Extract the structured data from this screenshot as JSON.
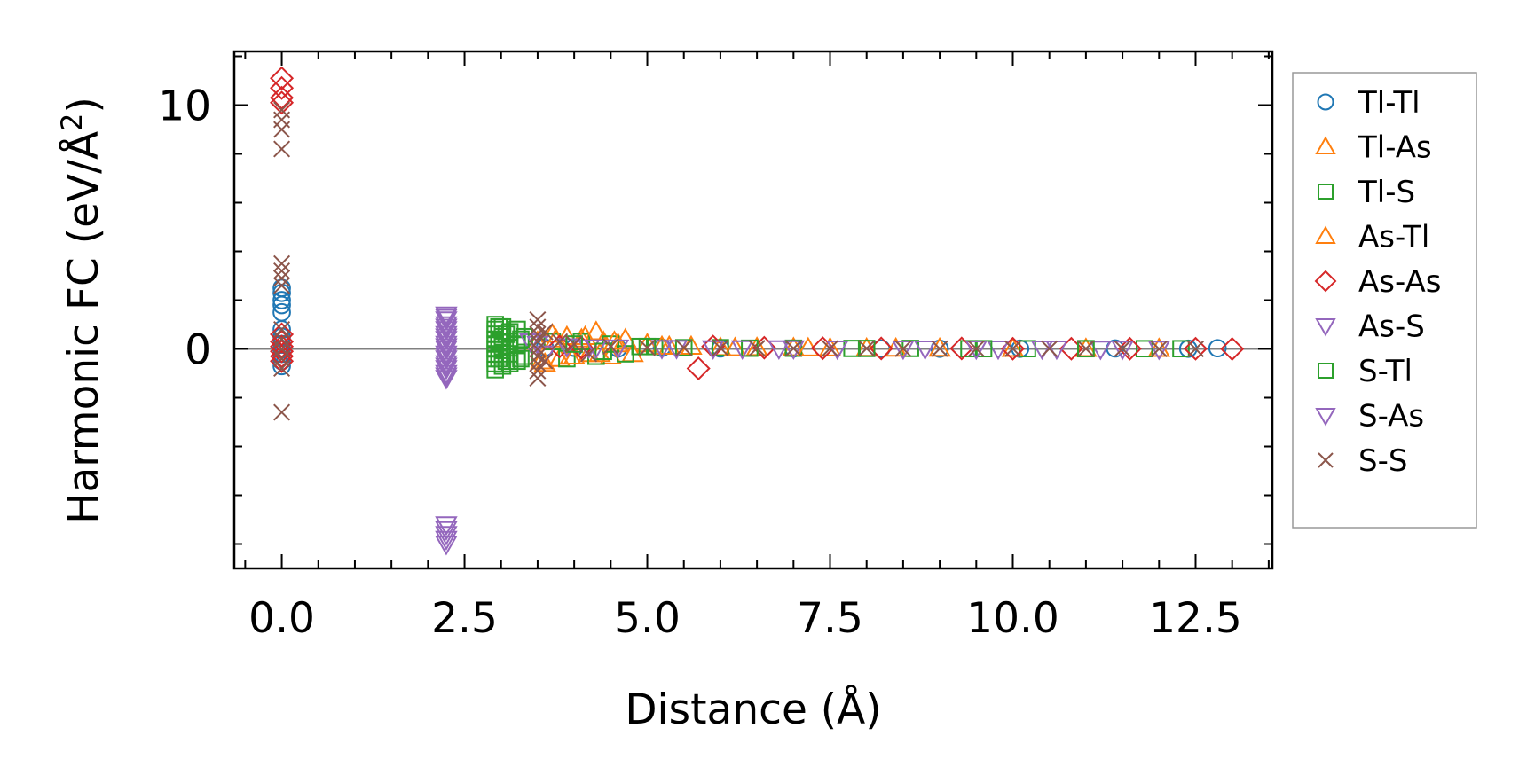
{
  "chart_data": {
    "type": "scatter",
    "title": "",
    "xlabel": "Distance (Å)",
    "ylabel_main": "Harmonic FC (eV/Å",
    "ylabel_sup": "2",
    "ylabel_close": ")",
    "xlim": [
      -0.65,
      13.55
    ],
    "ylim": [
      -9.0,
      12.2
    ],
    "xticks": [
      0.0,
      2.5,
      5.0,
      7.5,
      10.0,
      12.5
    ],
    "xtick_labels": [
      "0.0",
      "2.5",
      "5.0",
      "7.5",
      "10.0",
      "12.5"
    ],
    "yticks": [
      0,
      10
    ],
    "ytick_labels": [
      "0",
      "10"
    ],
    "y_minor_step": 2,
    "x_minor_step": 0.5,
    "zero_line": true,
    "legend_position": "outside-right",
    "series": [
      {
        "name": "Tl-Tl",
        "marker": "circle",
        "color": "#1f77b4",
        "points": [
          [
            0,
            2.3
          ],
          [
            0,
            2.0
          ],
          [
            0,
            1.8
          ],
          [
            0,
            2.5
          ],
          [
            0,
            0.8
          ],
          [
            0,
            0.5
          ],
          [
            0,
            0.2
          ],
          [
            0,
            -0.2
          ],
          [
            0,
            -0.5
          ],
          [
            0,
            -0.7
          ],
          [
            0,
            0.0
          ],
          [
            0,
            1.5
          ],
          [
            3.6,
            0.05
          ],
          [
            4.0,
            0.05
          ],
          [
            4.6,
            0.02
          ],
          [
            5.2,
            0.05
          ],
          [
            6.0,
            0.02
          ],
          [
            7.0,
            0.02
          ],
          [
            8.2,
            0.01
          ],
          [
            9.0,
            0.01
          ],
          [
            10.1,
            0.01
          ],
          [
            11.4,
            0.02
          ],
          [
            12.4,
            0.01
          ],
          [
            12.8,
            0.03
          ]
        ]
      },
      {
        "name": "Tl-As",
        "marker": "triangle-up",
        "color": "#ff7f0e",
        "points": [
          [
            3.5,
            0.3
          ],
          [
            3.6,
            -0.6
          ],
          [
            3.7,
            0.6
          ],
          [
            3.8,
            -0.4
          ],
          [
            3.9,
            0.5
          ],
          [
            4.0,
            -0.3
          ],
          [
            4.1,
            0.4
          ],
          [
            4.2,
            -0.2
          ],
          [
            4.3,
            0.7
          ],
          [
            4.4,
            0.3
          ],
          [
            4.5,
            -0.3
          ],
          [
            4.6,
            0.2
          ],
          [
            4.7,
            0.4
          ],
          [
            4.8,
            -0.2
          ],
          [
            5.0,
            0.2
          ],
          [
            5.3,
            0.1
          ],
          [
            5.6,
            0.1
          ],
          [
            6.0,
            0.05
          ],
          [
            6.5,
            0.05
          ],
          [
            7.0,
            0.04
          ],
          [
            7.5,
            0.03
          ],
          [
            8.0,
            0.02
          ],
          [
            9.0,
            0.02
          ],
          [
            10.0,
            0.01
          ],
          [
            11.0,
            0.01
          ],
          [
            12.0,
            0.01
          ]
        ]
      },
      {
        "name": "Tl-S",
        "marker": "square",
        "color": "#2ca02c",
        "points": [
          [
            2.92,
            1.0
          ],
          [
            2.92,
            0.8
          ],
          [
            2.92,
            0.6
          ],
          [
            2.92,
            0.4
          ],
          [
            2.92,
            0.2
          ],
          [
            2.92,
            0.0
          ],
          [
            2.92,
            -0.2
          ],
          [
            2.92,
            -0.4
          ],
          [
            2.92,
            -0.6
          ],
          [
            2.92,
            -0.85
          ],
          [
            3.02,
            0.9
          ],
          [
            3.02,
            0.5
          ],
          [
            3.02,
            0.1
          ],
          [
            3.02,
            -0.3
          ],
          [
            3.02,
            -0.7
          ],
          [
            3.12,
            0.7
          ],
          [
            3.12,
            0.3
          ],
          [
            3.12,
            -0.2
          ],
          [
            3.12,
            -0.6
          ],
          [
            3.22,
            0.8
          ],
          [
            3.22,
            0.2
          ],
          [
            3.22,
            -0.5
          ],
          [
            3.32,
            0.5
          ],
          [
            3.32,
            -0.3
          ],
          [
            3.7,
            0.3
          ],
          [
            3.9,
            -0.4
          ],
          [
            4.1,
            0.3
          ],
          [
            4.3,
            -0.3
          ],
          [
            4.5,
            0.2
          ],
          [
            4.7,
            -0.2
          ],
          [
            4.9,
            0.1
          ],
          [
            5.1,
            0.1
          ],
          [
            5.5,
            0.05
          ],
          [
            6.0,
            0.05
          ],
          [
            7.0,
            0.03
          ],
          [
            7.8,
            0.02
          ],
          [
            8.6,
            0.02
          ],
          [
            9.4,
            0.01
          ],
          [
            10.2,
            0.01
          ],
          [
            11.0,
            0.01
          ],
          [
            11.8,
            0.01
          ],
          [
            12.3,
            0.01
          ]
        ]
      },
      {
        "name": "As-Tl",
        "marker": "triangle-up",
        "color": "#ff7f0e",
        "points": [
          [
            3.55,
            -0.5
          ],
          [
            3.75,
            0.4
          ],
          [
            3.95,
            -0.3
          ],
          [
            4.15,
            0.5
          ],
          [
            4.35,
            -0.2
          ],
          [
            4.55,
            0.3
          ],
          [
            5.2,
            0.1
          ],
          [
            6.2,
            0.04
          ],
          [
            7.2,
            0.03
          ],
          [
            8.4,
            0.02
          ]
        ]
      },
      {
        "name": "As-As",
        "marker": "diamond",
        "color": "#d62728",
        "points": [
          [
            0,
            11.1
          ],
          [
            0,
            10.7
          ],
          [
            0,
            10.3
          ],
          [
            0,
            10.1
          ],
          [
            0,
            0.6
          ],
          [
            0,
            0.3
          ],
          [
            0,
            0.1
          ],
          [
            0,
            -0.1
          ],
          [
            0,
            -0.3
          ],
          [
            0,
            -0.5
          ],
          [
            3.8,
            0.1
          ],
          [
            4.1,
            0.05
          ],
          [
            5.7,
            -0.8
          ],
          [
            5.9,
            0.1
          ],
          [
            6.6,
            0.05
          ],
          [
            7.4,
            0.03
          ],
          [
            8.2,
            0.02
          ],
          [
            9.3,
            0.02
          ],
          [
            10.0,
            0.01
          ],
          [
            10.8,
            0.01
          ],
          [
            11.6,
            0.01
          ],
          [
            12.5,
            0.01
          ],
          [
            13.0,
            0.0
          ]
        ]
      },
      {
        "name": "As-S",
        "marker": "triangle-down",
        "color": "#9467bd",
        "points": [
          [
            2.25,
            1.4
          ],
          [
            2.25,
            1.2
          ],
          [
            2.25,
            1.0
          ],
          [
            2.25,
            0.8
          ],
          [
            2.25,
            0.6
          ],
          [
            2.25,
            0.4
          ],
          [
            2.25,
            0.2
          ],
          [
            2.25,
            0.0
          ],
          [
            2.25,
            -0.2
          ],
          [
            2.25,
            -0.4
          ],
          [
            2.25,
            -0.6
          ],
          [
            2.25,
            -0.8
          ],
          [
            2.25,
            -1.0
          ],
          [
            2.25,
            -1.2
          ],
          [
            2.25,
            -7.2
          ],
          [
            2.25,
            -7.6
          ],
          [
            2.25,
            -8.0
          ],
          [
            3.4,
            0.3
          ],
          [
            3.6,
            -0.2
          ],
          [
            3.9,
            0.1
          ],
          [
            4.2,
            0.05
          ],
          [
            4.6,
            0.05
          ],
          [
            5.2,
            0.03
          ],
          [
            5.9,
            0.02
          ],
          [
            6.8,
            0.02
          ],
          [
            7.6,
            0.01
          ],
          [
            8.8,
            0.01
          ],
          [
            9.8,
            0.01
          ],
          [
            10.6,
            0.01
          ],
          [
            11.2,
            0.0
          ],
          [
            12.0,
            0.0
          ]
        ]
      },
      {
        "name": "S-Tl",
        "marker": "square",
        "color": "#2ca02c",
        "points": [
          [
            2.97,
            0.9
          ],
          [
            2.97,
            0.3
          ],
          [
            2.97,
            -0.4
          ],
          [
            3.07,
            0.6
          ],
          [
            3.07,
            -0.5
          ],
          [
            3.27,
            0.4
          ],
          [
            3.27,
            -0.4
          ],
          [
            4.0,
            0.2
          ],
          [
            4.4,
            -0.1
          ],
          [
            5.0,
            0.1
          ],
          [
            6.4,
            0.03
          ],
          [
            8.0,
            0.02
          ],
          [
            9.6,
            0.01
          ],
          [
            11.0,
            0.01
          ]
        ]
      },
      {
        "name": "S-As",
        "marker": "triangle-down",
        "color": "#9467bd",
        "points": [
          [
            2.25,
            1.3
          ],
          [
            2.25,
            0.9
          ],
          [
            2.25,
            0.5
          ],
          [
            2.25,
            0.1
          ],
          [
            2.25,
            -0.3
          ],
          [
            2.25,
            -0.7
          ],
          [
            2.25,
            -1.1
          ],
          [
            2.25,
            -7.4
          ],
          [
            2.25,
            -7.8
          ],
          [
            3.5,
            0.2
          ],
          [
            4.3,
            0.05
          ],
          [
            5.4,
            0.03
          ],
          [
            6.3,
            0.02
          ],
          [
            7.0,
            0.02
          ],
          [
            8.5,
            0.01
          ],
          [
            9.5,
            0.01
          ],
          [
            10.4,
            0.01
          ],
          [
            11.5,
            0.0
          ]
        ]
      },
      {
        "name": "S-S",
        "marker": "x",
        "color": "#8c564b",
        "points": [
          [
            0,
            9.8
          ],
          [
            0,
            9.4
          ],
          [
            0,
            9.0
          ],
          [
            0,
            8.2
          ],
          [
            0,
            3.5
          ],
          [
            0,
            3.2
          ],
          [
            0,
            2.9
          ],
          [
            0,
            2.6
          ],
          [
            0,
            0.8
          ],
          [
            0,
            0.4
          ],
          [
            0,
            0.0
          ],
          [
            0,
            -0.4
          ],
          [
            0,
            -0.8
          ],
          [
            0,
            -2.6
          ],
          [
            3.5,
            1.2
          ],
          [
            3.5,
            0.9
          ],
          [
            3.5,
            0.6
          ],
          [
            3.5,
            0.3
          ],
          [
            3.5,
            0.0
          ],
          [
            3.5,
            -0.3
          ],
          [
            3.5,
            -0.6
          ],
          [
            3.5,
            -0.9
          ],
          [
            3.5,
            -1.2
          ],
          [
            3.6,
            0.7
          ],
          [
            3.6,
            -0.5
          ],
          [
            3.8,
            0.3
          ],
          [
            4.0,
            0.2
          ],
          [
            4.2,
            -0.2
          ],
          [
            4.5,
            0.1
          ],
          [
            5.0,
            0.05
          ],
          [
            5.5,
            0.05
          ],
          [
            6.0,
            0.04
          ],
          [
            6.5,
            0.03
          ],
          [
            7.0,
            0.02
          ],
          [
            7.5,
            0.02
          ],
          [
            8.0,
            0.02
          ],
          [
            8.5,
            0.01
          ],
          [
            9.0,
            0.01
          ],
          [
            9.5,
            0.01
          ],
          [
            10.0,
            0.01
          ],
          [
            10.5,
            0.01
          ],
          [
            11.0,
            0.01
          ],
          [
            11.5,
            0.01
          ],
          [
            12.0,
            0.0
          ],
          [
            12.5,
            0.0
          ]
        ]
      }
    ]
  }
}
